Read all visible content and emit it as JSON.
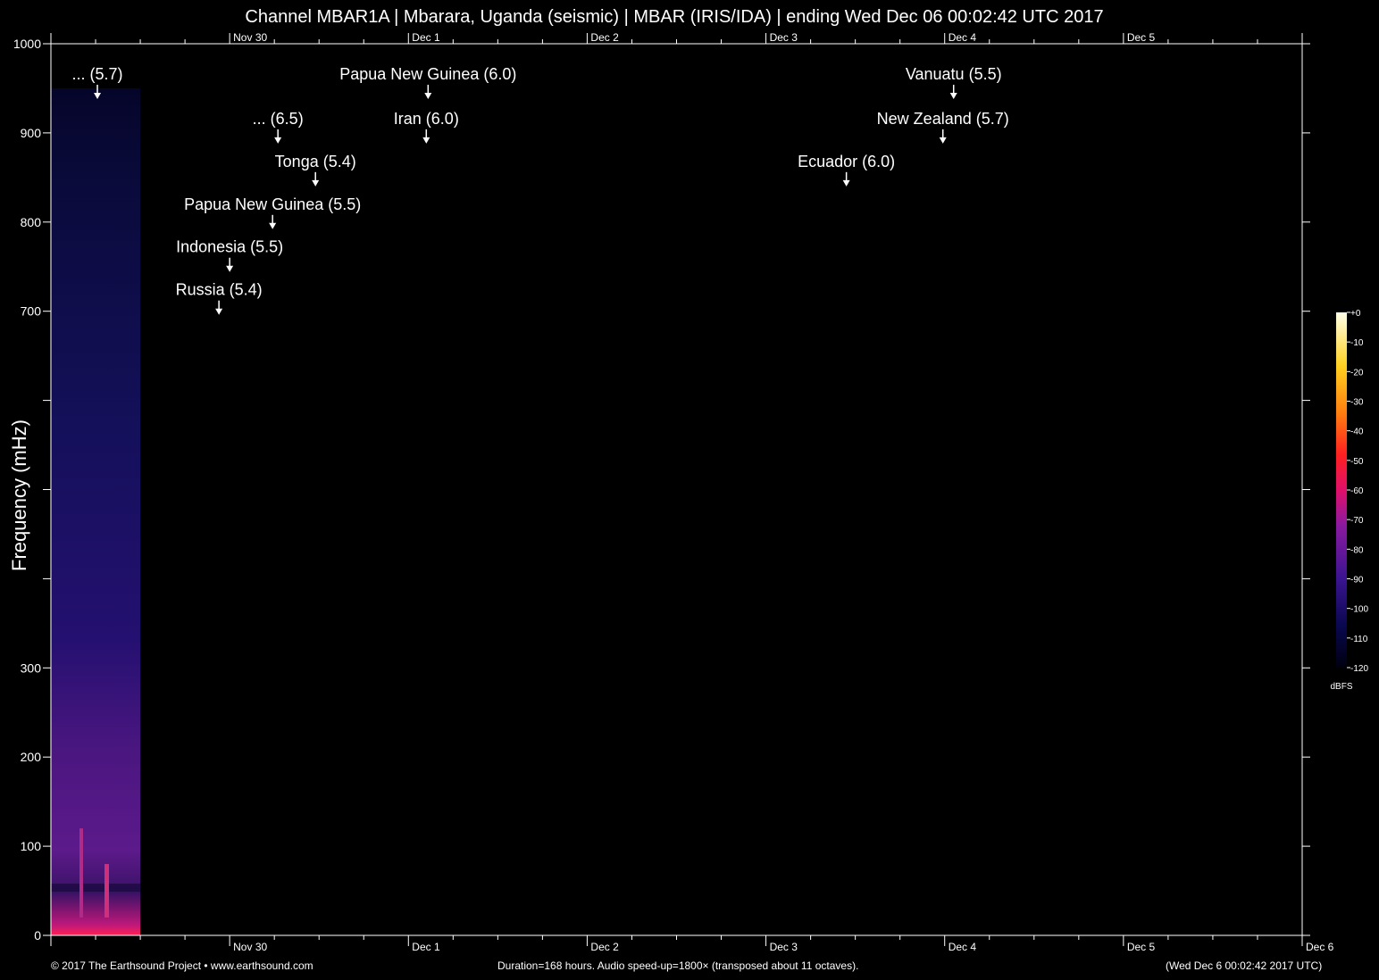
{
  "title": "Channel MBAR1A | Mbarara, Uganda (seismic) | MBAR (IRIS/IDA) | ending Wed Dec 06 00:02:42 UTC 2017",
  "footer": {
    "left": "© 2017 The Earthsound Project • www.earthsound.com",
    "center": "Duration=168 hours. Audio speed-up=1800× (transposed about 11 octaves).",
    "right": "(Wed Dec  6 00:02:42 2017 UTC)"
  },
  "chart_data": {
    "type": "heatmap",
    "title": "Channel MBAR1A | Mbarara, Uganda (seismic) | MBAR (IRIS/IDA) | ending Wed Dec 06 00:02:42 UTC 2017",
    "ylabel": "Frequency (mHz)",
    "xlabel": "",
    "x_unit": "days before Dec 6 00:02:42 UTC",
    "xlim": [
      0,
      7
    ],
    "ylim": [
      0,
      1000
    ],
    "y_ticks": [
      0,
      100,
      200,
      300,
      700,
      800,
      900,
      1000
    ],
    "y_minor_ticks": [
      400,
      500,
      600
    ],
    "x_ticks_bottom": [
      {
        "label": "Nov 30",
        "x": 6
      },
      {
        "label": "Dec  1",
        "x": 5
      },
      {
        "label": "Dec  2",
        "x": 4
      },
      {
        "label": "Dec  3",
        "x": 3
      },
      {
        "label": "Dec  4",
        "x": 2
      },
      {
        "label": "Dec  5",
        "x": 1
      },
      {
        "label": "Dec  6",
        "x": 0
      }
    ],
    "x_ticks_top": [
      {
        "label": "Nov 30",
        "x": 6
      },
      {
        "label": "Dec  1",
        "x": 5
      },
      {
        "label": "Dec  2",
        "x": 4
      },
      {
        "label": "Dec  3",
        "x": 3
      },
      {
        "label": "Dec  4",
        "x": 2
      },
      {
        "label": "Dec  5",
        "x": 1
      }
    ],
    "data_extent_days": [
      6.5,
      7
    ],
    "colorbar": {
      "label": "dBFS",
      "ticks": [
        "+0",
        "-10",
        "-20",
        "-30",
        "-40",
        "-50",
        "-60",
        "-70",
        "-80",
        "-90",
        "-100",
        "-110",
        "-120"
      ],
      "range": [
        -120,
        0
      ]
    },
    "events": [
      {
        "label": "... (5.7)",
        "x": 6.74,
        "y": 940
      },
      {
        "label": "Papua New Guinea (6.0)",
        "x": 4.89,
        "y": 940
      },
      {
        "label": "Vanuatu (5.5)",
        "x": 1.95,
        "y": 940
      },
      {
        "label": "... (6.5)",
        "x": 5.73,
        "y": 890
      },
      {
        "label": "Iran (6.0)",
        "x": 4.9,
        "y": 890
      },
      {
        "label": "New Zealand (5.7)",
        "x": 2.01,
        "y": 890
      },
      {
        "label": "Tonga (5.4)",
        "x": 5.52,
        "y": 842
      },
      {
        "label": "Ecuador (6.0)",
        "x": 2.55,
        "y": 842
      },
      {
        "label": "Papua New Guinea (5.5)",
        "x": 5.76,
        "y": 794
      },
      {
        "label": "Indonesia (5.5)",
        "x": 6.0,
        "y": 746
      },
      {
        "label": "Russia (5.4)",
        "x": 6.06,
        "y": 698
      }
    ]
  }
}
